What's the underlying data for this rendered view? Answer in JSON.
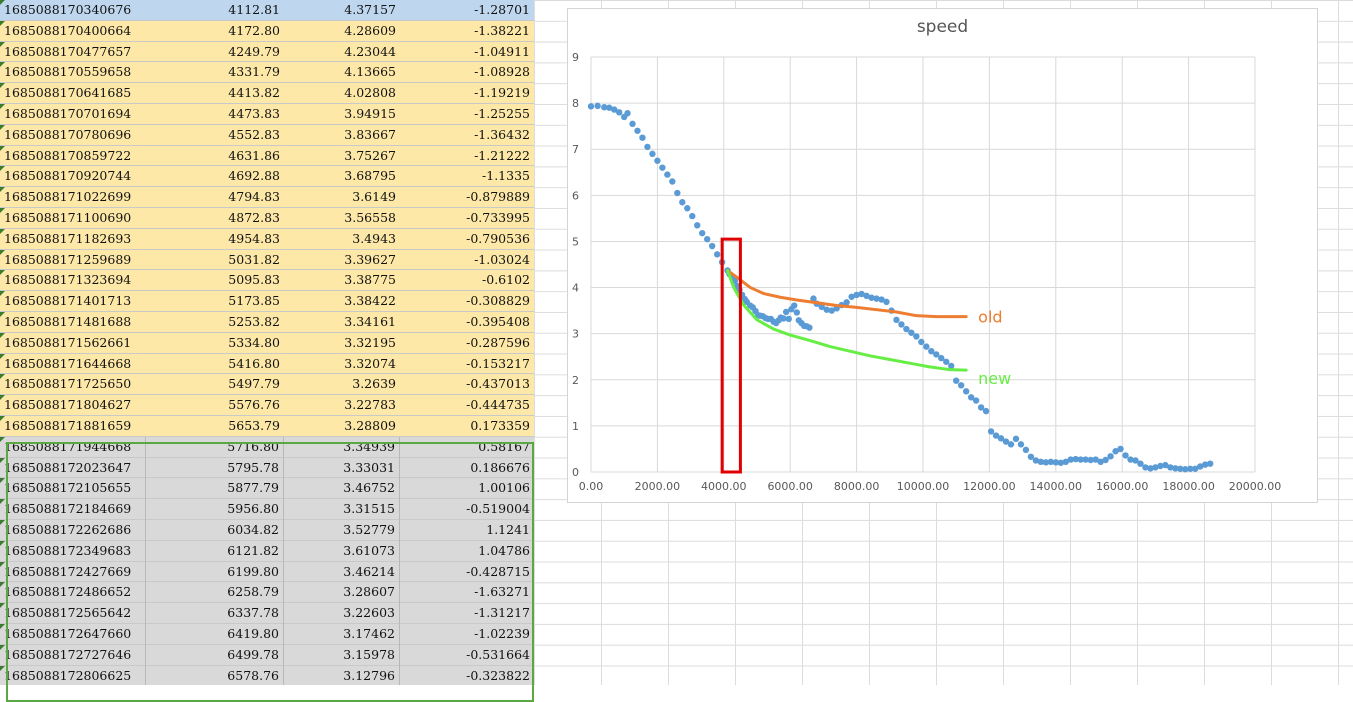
{
  "spreadsheet": {
    "rows": [
      {
        "t": "1685088170340676",
        "pos": "4112.81",
        "speed": "4.37157",
        "acc": "-1.28701",
        "fill": "blue"
      },
      {
        "t": "1685088170400664",
        "pos": "4172.80",
        "speed": "4.28609",
        "acc": "-1.38221",
        "fill": "yellow"
      },
      {
        "t": "1685088170477657",
        "pos": "4249.79",
        "speed": "4.23044",
        "acc": "-1.04911",
        "fill": "yellow"
      },
      {
        "t": "1685088170559658",
        "pos": "4331.79",
        "speed": "4.13665",
        "acc": "-1.08928",
        "fill": "yellow"
      },
      {
        "t": "1685088170641685",
        "pos": "4413.82",
        "speed": "4.02808",
        "acc": "-1.19219",
        "fill": "yellow"
      },
      {
        "t": "1685088170701694",
        "pos": "4473.83",
        "speed": "3.94915",
        "acc": "-1.25255",
        "fill": "yellow"
      },
      {
        "t": "1685088170780696",
        "pos": "4552.83",
        "speed": "3.83667",
        "acc": "-1.36432",
        "fill": "yellow"
      },
      {
        "t": "1685088170859722",
        "pos": "4631.86",
        "speed": "3.75267",
        "acc": "-1.21222",
        "fill": "yellow"
      },
      {
        "t": "1685088170920744",
        "pos": "4692.88",
        "speed": "3.68795",
        "acc": "-1.1335",
        "fill": "yellow"
      },
      {
        "t": "1685088171022699",
        "pos": "4794.83",
        "speed": "3.6149",
        "acc": "-0.879889",
        "fill": "yellow"
      },
      {
        "t": "1685088171100690",
        "pos": "4872.83",
        "speed": "3.56558",
        "acc": "-0.733995",
        "fill": "yellow"
      },
      {
        "t": "1685088171182693",
        "pos": "4954.83",
        "speed": "3.4943",
        "acc": "-0.790536",
        "fill": "yellow"
      },
      {
        "t": "1685088171259689",
        "pos": "5031.82",
        "speed": "3.39627",
        "acc": "-1.03024",
        "fill": "yellow"
      },
      {
        "t": "1685088171323694",
        "pos": "5095.83",
        "speed": "3.38775",
        "acc": "-0.6102",
        "fill": "yellow"
      },
      {
        "t": "1685088171401713",
        "pos": "5173.85",
        "speed": "3.38422",
        "acc": "-0.308829",
        "fill": "yellow"
      },
      {
        "t": "1685088171481688",
        "pos": "5253.82",
        "speed": "3.34161",
        "acc": "-0.395408",
        "fill": "yellow"
      },
      {
        "t": "1685088171562661",
        "pos": "5334.80",
        "speed": "3.32195",
        "acc": "-0.287596",
        "fill": "yellow"
      },
      {
        "t": "1685088171644668",
        "pos": "5416.80",
        "speed": "3.32074",
        "acc": "-0.153217",
        "fill": "yellow"
      },
      {
        "t": "1685088171725650",
        "pos": "5497.79",
        "speed": "3.2639",
        "acc": "-0.437013",
        "fill": "yellow"
      },
      {
        "t": "1685088171804627",
        "pos": "5576.76",
        "speed": "3.22783",
        "acc": "-0.444735",
        "fill": "yellow"
      },
      {
        "t": "1685088171881659",
        "pos": "5653.79",
        "speed": "3.28809",
        "acc": "0.173359",
        "fill": "yellow"
      },
      {
        "t": "1685088171944668",
        "pos": "5716.80",
        "speed": "3.34939",
        "acc": "0.58167",
        "fill": "gray"
      },
      {
        "t": "1685088172023647",
        "pos": "5795.78",
        "speed": "3.33031",
        "acc": "0.186676",
        "fill": "gray"
      },
      {
        "t": "1685088172105655",
        "pos": "5877.79",
        "speed": "3.46752",
        "acc": "1.00106",
        "fill": "gray"
      },
      {
        "t": "1685088172184669",
        "pos": "5956.80",
        "speed": "3.31515",
        "acc": "-0.519004",
        "fill": "gray"
      },
      {
        "t": "1685088172262686",
        "pos": "6034.82",
        "speed": "3.52779",
        "acc": "1.1241",
        "fill": "gray"
      },
      {
        "t": "1685088172349683",
        "pos": "6121.82",
        "speed": "3.61073",
        "acc": "1.04786",
        "fill": "gray"
      },
      {
        "t": "1685088172427669",
        "pos": "6199.80",
        "speed": "3.46214",
        "acc": "-0.428715",
        "fill": "gray"
      },
      {
        "t": "1685088172486652",
        "pos": "6258.79",
        "speed": "3.28607",
        "acc": "-1.63271",
        "fill": "gray"
      },
      {
        "t": "1685088172565642",
        "pos": "6337.78",
        "speed": "3.22603",
        "acc": "-1.31217",
        "fill": "gray"
      },
      {
        "t": "1685088172647660",
        "pos": "6419.80",
        "speed": "3.17462",
        "acc": "-1.02239",
        "fill": "gray"
      },
      {
        "t": "1685088172727646",
        "pos": "6499.78",
        "speed": "3.15978",
        "acc": "-0.531664",
        "fill": "gray"
      },
      {
        "t": "1685088172806625",
        "pos": "6578.76",
        "speed": "3.12796",
        "acc": "-0.323822",
        "fill": "gray"
      }
    ]
  },
  "chart_data": {
    "type": "scatter",
    "title": "speed",
    "xlabel": "",
    "ylabel": "",
    "xlim": [
      0,
      20000
    ],
    "ylim": [
      0,
      9
    ],
    "x_ticks": [
      "0.00",
      "2000.00",
      "4000.00",
      "6000.00",
      "8000.00",
      "10000.00",
      "12000.00",
      "14000.00",
      "16000.00",
      "18000.00",
      "20000.00"
    ],
    "y_ticks": [
      "0",
      "1",
      "2",
      "3",
      "4",
      "5",
      "6",
      "7",
      "8",
      "9"
    ],
    "grid": true,
    "colors": {
      "points": "#5b9bd5",
      "old": "#ed7d31",
      "new": "#66ee44",
      "highlight": "#e00000"
    },
    "series": [
      {
        "kind": "points",
        "x": [
          0,
          200,
          400,
          550,
          700,
          850,
          1000,
          1100,
          1250,
          1400,
          1550,
          1700,
          1850,
          2000,
          2150,
          2300,
          2450,
          2600,
          2750,
          2900,
          3050,
          3200,
          3350,
          3500,
          3650,
          3800,
          3950,
          4112.81,
          4172.8,
          4249.79,
          4331.79,
          4413.82,
          4473.83,
          4552.83,
          4631.86,
          4692.88,
          4794.83,
          4872.83,
          4954.83,
          5031.82,
          5095.83,
          5173.85,
          5253.82,
          5334.8,
          5416.8,
          5497.79,
          5576.76,
          5653.79,
          5716.8,
          5795.78,
          5877.79,
          5956.8,
          6034.82,
          6121.82,
          6199.8,
          6258.79,
          6337.78,
          6419.8,
          6499.78,
          6578.76,
          6700,
          6800,
          6950,
          7100,
          7250,
          7400,
          7550,
          7700,
          7850,
          8000,
          8150,
          8300,
          8450,
          8600,
          8750,
          8900,
          9050,
          9200,
          9350,
          9500,
          9650,
          9800,
          9950,
          10100,
          10250,
          10400,
          10550,
          10700,
          10850,
          11000,
          11150,
          11300,
          11450,
          11600,
          11750,
          11900,
          12050,
          12200,
          12350,
          12500,
          12650,
          12800,
          12950,
          13100,
          13250,
          13400,
          13550,
          13700,
          13850,
          14000,
          14150,
          14300,
          14450,
          14600,
          14750,
          14900,
          15050,
          15200,
          15350,
          15500,
          15650,
          15800,
          15950,
          16100,
          16250,
          16400,
          16550,
          16700,
          16850,
          17000,
          17150,
          17300,
          17450,
          17600,
          17750,
          17900,
          18050,
          18200,
          18350,
          18500,
          18650
        ],
        "y": [
          7.93,
          7.94,
          7.91,
          7.9,
          7.86,
          7.8,
          7.7,
          7.78,
          7.55,
          7.4,
          7.25,
          7.05,
          6.9,
          6.75,
          6.6,
          6.45,
          6.3,
          6.05,
          5.85,
          5.72,
          5.55,
          5.35,
          5.18,
          5.05,
          4.9,
          4.72,
          4.55,
          4.37,
          4.29,
          4.23,
          4.14,
          4.03,
          3.95,
          3.84,
          3.75,
          3.69,
          3.61,
          3.57,
          3.49,
          3.4,
          3.39,
          3.38,
          3.34,
          3.32,
          3.32,
          3.26,
          3.23,
          3.29,
          3.35,
          3.33,
          3.47,
          3.32,
          3.53,
          3.61,
          3.46,
          3.29,
          3.23,
          3.17,
          3.16,
          3.13,
          3.76,
          3.65,
          3.58,
          3.52,
          3.5,
          3.55,
          3.62,
          3.68,
          3.8,
          3.84,
          3.86,
          3.82,
          3.78,
          3.76,
          3.74,
          3.69,
          3.5,
          3.3,
          3.2,
          3.1,
          3.02,
          2.94,
          2.82,
          2.72,
          2.62,
          2.55,
          2.47,
          2.39,
          2.3,
          1.98,
          1.88,
          1.75,
          1.62,
          1.55,
          1.4,
          1.32,
          0.88,
          0.79,
          0.73,
          0.66,
          0.6,
          0.72,
          0.6,
          0.48,
          0.33,
          0.25,
          0.22,
          0.21,
          0.22,
          0.21,
          0.2,
          0.22,
          0.27,
          0.28,
          0.27,
          0.27,
          0.26,
          0.27,
          0.22,
          0.26,
          0.34,
          0.45,
          0.5,
          0.36,
          0.27,
          0.25,
          0.18,
          0.1,
          0.08,
          0.1,
          0.13,
          0.15,
          0.1,
          0.08,
          0.07,
          0.06,
          0.07,
          0.07,
          0.12,
          0.16,
          0.18
        ]
      },
      {
        "kind": "line",
        "name": "old",
        "x": [
          4112,
          4400,
          4800,
          5200,
          5700,
          6200,
          6800,
          7400,
          8000,
          8600,
          9200,
          9800,
          10400,
          11000,
          11300
        ],
        "y": [
          4.37,
          4.22,
          4.0,
          3.87,
          3.79,
          3.73,
          3.67,
          3.61,
          3.57,
          3.52,
          3.47,
          3.39,
          3.37,
          3.37,
          3.37
        ]
      },
      {
        "kind": "line",
        "name": "new",
        "x": [
          4112,
          4300,
          4600,
          5000,
          5500,
          6000,
          6600,
          7200,
          7800,
          8400,
          9000,
          9600,
          10200,
          10800,
          11300
        ],
        "y": [
          4.37,
          4.0,
          3.62,
          3.3,
          3.1,
          2.97,
          2.85,
          2.72,
          2.62,
          2.52,
          2.44,
          2.36,
          2.28,
          2.22,
          2.21
        ]
      }
    ],
    "annotations": [
      {
        "kind": "rect",
        "x0": 3950,
        "x1": 4500,
        "y0": 0,
        "y1": 5.05
      }
    ]
  }
}
